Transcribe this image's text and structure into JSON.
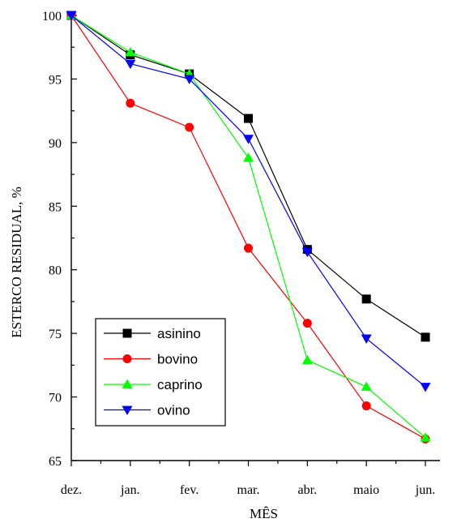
{
  "chart_data": {
    "type": "line",
    "title": "",
    "xlabel": "MÊS",
    "ylabel": "ESTERCO RESIDUAL, %",
    "categories": [
      "dez.",
      "jan.",
      "fev.",
      "mar.",
      "abr.",
      "maio",
      "jun."
    ],
    "ylim": [
      65,
      100
    ],
    "yticks": [
      65,
      70,
      75,
      80,
      85,
      90,
      95,
      100
    ],
    "ytick_labels": [
      "65",
      "70",
      "75",
      "80",
      "85",
      "90",
      "95",
      "100"
    ],
    "y_minor_step": 2.5,
    "grid": false,
    "legend_position": "bottom-left",
    "series": [
      {
        "name": "asinino",
        "color": "#000000",
        "marker": "square",
        "values": [
          100,
          96.9,
          95.4,
          91.9,
          81.6,
          77.7,
          74.7
        ]
      },
      {
        "name": "bovino",
        "color": "#ff0000",
        "marker": "circle",
        "values": [
          100,
          93.1,
          91.2,
          81.7,
          75.8,
          69.3,
          66.7
        ]
      },
      {
        "name": "caprino",
        "color": "#00ff00",
        "marker": "triangle-up",
        "values": [
          100,
          97.1,
          95.4,
          88.8,
          72.9,
          70.8,
          66.8
        ]
      },
      {
        "name": "ovino",
        "color": "#0000ff",
        "marker": "triangle-down",
        "values": [
          100,
          96.2,
          95.0,
          90.3,
          81.4,
          74.6,
          70.8
        ]
      }
    ]
  }
}
